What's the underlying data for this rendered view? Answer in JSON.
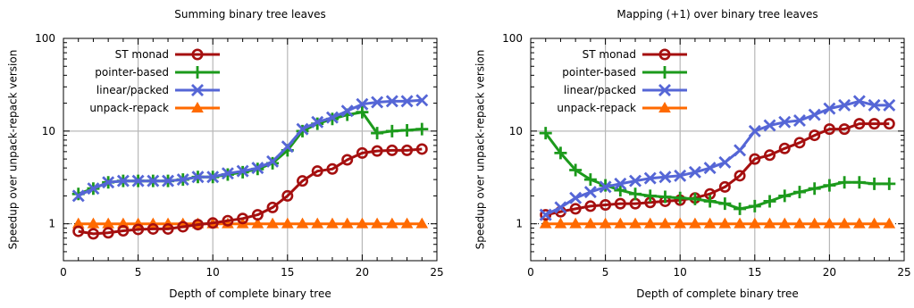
{
  "colors": {
    "st_monad": "#a50f0f",
    "pointer_based": "#1c9a1c",
    "linear_packed": "#5566d6",
    "unpack_repack": "#ff6a00",
    "grid": "#b8b8b8",
    "axis": "#000000"
  },
  "chart_data": [
    {
      "type": "line",
      "title": "Summing binary tree leaves",
      "xlabel": "Depth of complete binary tree",
      "ylabel": "Speedup over unpack-repack version",
      "xlim": [
        0,
        25
      ],
      "ylim": [
        0.4,
        100
      ],
      "y_scale": "log",
      "x_ticks": [
        "0",
        "5",
        "10",
        "15",
        "20",
        "25"
      ],
      "y_ticks": [
        "1",
        "10",
        "100"
      ],
      "grid": true,
      "legend_position": "top-left",
      "x": [
        1,
        2,
        3,
        4,
        5,
        6,
        7,
        8,
        9,
        10,
        11,
        12,
        13,
        14,
        15,
        16,
        17,
        18,
        19,
        20,
        21,
        22,
        23,
        24
      ],
      "series": [
        {
          "name": "ST monad",
          "marker": "circle",
          "color_key": "st_monad",
          "values": [
            0.83,
            0.78,
            0.8,
            0.84,
            0.87,
            0.88,
            0.88,
            0.93,
            0.98,
            1.02,
            1.08,
            1.14,
            1.25,
            1.5,
            2.0,
            2.9,
            3.7,
            3.9,
            4.9,
            5.8,
            6.1,
            6.2,
            6.2,
            6.4
          ]
        },
        {
          "name": "pointer-based",
          "marker": "plus",
          "color_key": "pointer_based",
          "values": [
            2.1,
            2.4,
            2.8,
            2.9,
            2.9,
            2.9,
            2.9,
            3.0,
            3.2,
            3.2,
            3.4,
            3.6,
            3.9,
            4.5,
            6.2,
            10.0,
            12.0,
            13.5,
            15.0,
            16.0,
            9.5,
            10.0,
            10.2,
            10.5
          ]
        },
        {
          "name": "linear/packed",
          "marker": "x",
          "color_key": "linear_packed",
          "values": [
            2.0,
            2.4,
            2.8,
            2.9,
            2.9,
            2.9,
            2.9,
            3.0,
            3.2,
            3.2,
            3.5,
            3.7,
            4.0,
            4.7,
            6.8,
            10.5,
            12.5,
            14.0,
            16.5,
            19.5,
            20.5,
            21.0,
            21.0,
            21.5
          ]
        },
        {
          "name": "unpack-repack",
          "marker": "triangle",
          "color_key": "unpack_repack",
          "values": [
            1,
            1,
            1,
            1,
            1,
            1,
            1,
            1,
            1,
            1,
            1,
            1,
            1,
            1,
            1,
            1,
            1,
            1,
            1,
            1,
            1,
            1,
            1,
            1
          ]
        }
      ]
    },
    {
      "type": "line",
      "title": "Mapping (+1) over binary tree leaves",
      "xlabel": "Depth of complete binary tree",
      "ylabel": "Speedup over unpack-repack version",
      "xlim": [
        0,
        25
      ],
      "ylim": [
        0.4,
        100
      ],
      "y_scale": "log",
      "x_ticks": [
        "0",
        "5",
        "10",
        "15",
        "20",
        "25"
      ],
      "y_ticks": [
        "1",
        "10",
        "100"
      ],
      "grid": true,
      "legend_position": "top-left",
      "x": [
        1,
        2,
        3,
        4,
        5,
        6,
        7,
        8,
        9,
        10,
        11,
        12,
        13,
        14,
        15,
        16,
        17,
        18,
        19,
        20,
        21,
        22,
        23,
        24
      ],
      "series": [
        {
          "name": "ST monad",
          "marker": "circle",
          "color_key": "st_monad",
          "values": [
            1.25,
            1.35,
            1.45,
            1.55,
            1.6,
            1.65,
            1.65,
            1.7,
            1.75,
            1.8,
            1.9,
            2.1,
            2.5,
            3.3,
            5.0,
            5.5,
            6.5,
            7.5,
            9.0,
            10.5,
            10.5,
            12.0,
            12.0,
            12.0
          ]
        },
        {
          "name": "pointer-based",
          "marker": "plus",
          "color_key": "pointer_based",
          "values": [
            9.5,
            5.8,
            3.8,
            3.0,
            2.6,
            2.3,
            2.1,
            2.0,
            1.95,
            1.9,
            1.85,
            1.75,
            1.65,
            1.45,
            1.55,
            1.75,
            2.0,
            2.2,
            2.4,
            2.6,
            2.8,
            2.8,
            2.7,
            2.7
          ]
        },
        {
          "name": "linear/packed",
          "marker": "x",
          "color_key": "linear_packed",
          "values": [
            1.25,
            1.5,
            1.9,
            2.2,
            2.5,
            2.7,
            2.9,
            3.1,
            3.2,
            3.3,
            3.6,
            4.0,
            4.6,
            6.2,
            10.0,
            11.5,
            12.5,
            13.0,
            15.0,
            17.5,
            19.0,
            21.0,
            19.0,
            19.0
          ]
        },
        {
          "name": "unpack-repack",
          "marker": "triangle",
          "color_key": "unpack_repack",
          "values": [
            1,
            1,
            1,
            1,
            1,
            1,
            1,
            1,
            1,
            1,
            1,
            1,
            1,
            1,
            1,
            1,
            1,
            1,
            1,
            1,
            1,
            1,
            1,
            1
          ]
        }
      ]
    }
  ]
}
